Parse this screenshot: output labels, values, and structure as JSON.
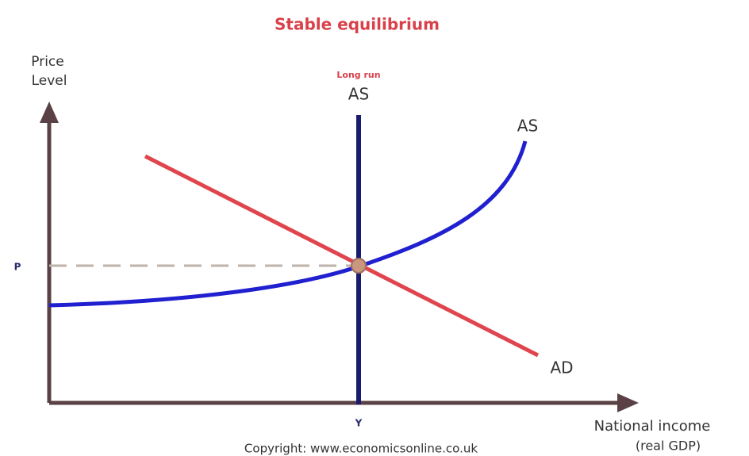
{
  "title": "Stable equilibrium",
  "y_axis_label": [
    "Price",
    "Level"
  ],
  "x_axis_label": [
    "National income",
    "(real GDP)"
  ],
  "long_run_as": {
    "note": "Long run",
    "label": "AS"
  },
  "short_run_as": {
    "label": "AS"
  },
  "aggregate_demand": {
    "label": "AD"
  },
  "price_marker": "P",
  "income_marker": "Y",
  "copyright": "Copyright: www.economicsonline.co.uk"
}
